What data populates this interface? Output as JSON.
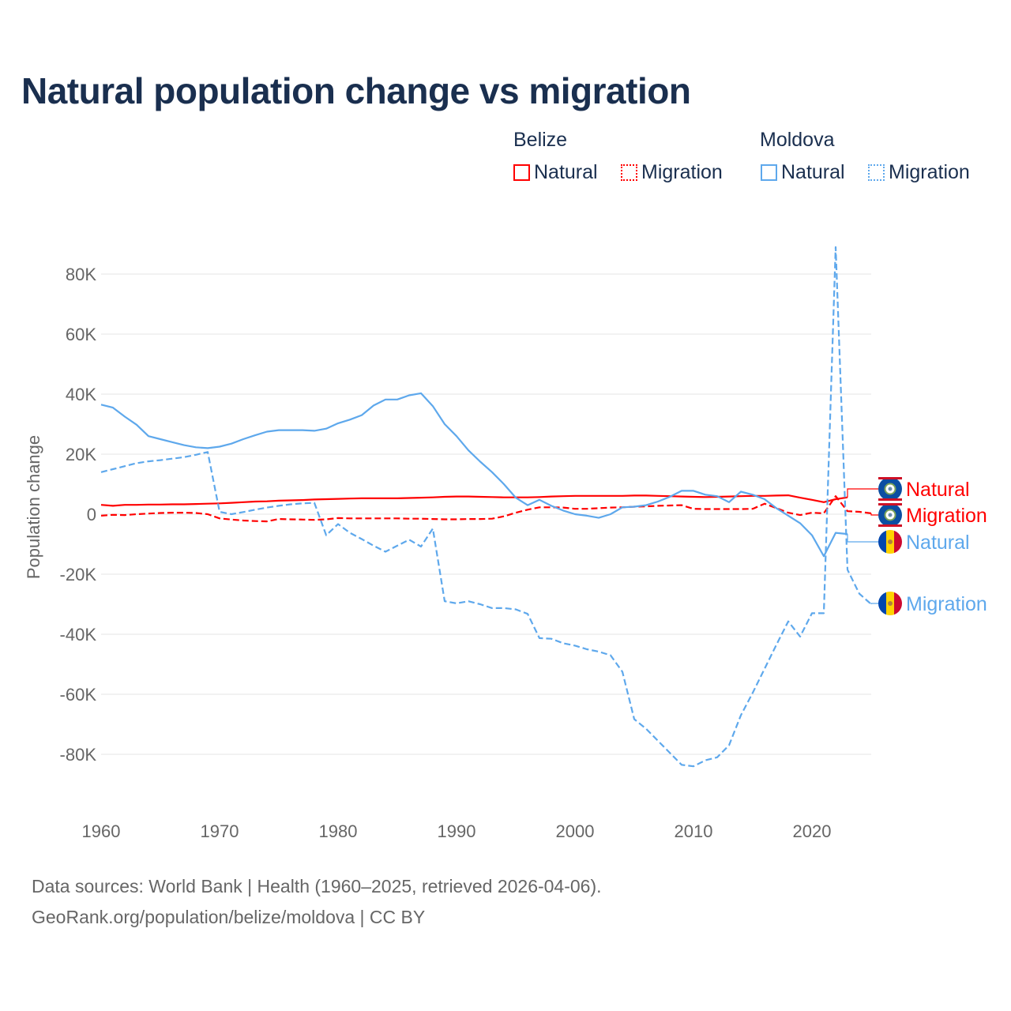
{
  "title": "Natural population change vs migration",
  "legend": {
    "groups": [
      {
        "name": "Belize",
        "items": [
          "Natural",
          "Migration"
        ],
        "color": "#ff0000"
      },
      {
        "name": "Moldova",
        "items": [
          "Natural",
          "Migration"
        ],
        "color": "#5ea8ec"
      }
    ]
  },
  "footer": {
    "line1": "Data sources: World Bank | Health (1960–2025, retrieved 2026-04-06).",
    "line2": "GeoRank.org/population/belize/moldova | CC BY"
  },
  "chart_data": {
    "type": "line",
    "title": "Natural population change vs migration",
    "xlabel": "",
    "ylabel": "Population change",
    "xlim": [
      1960,
      2025
    ],
    "ylim": [
      -100000,
      90000
    ],
    "xticks": [
      1960,
      1970,
      1980,
      1990,
      2000,
      2010,
      2020
    ],
    "yticks": [
      -80000,
      -60000,
      -40000,
      -20000,
      0,
      20000,
      40000,
      60000,
      80000
    ],
    "ytick_labels": [
      "-80K",
      "-60K",
      "-40K",
      "-20K",
      "0",
      "20K",
      "40K",
      "60K",
      "80K"
    ],
    "grid": true,
    "series": [
      {
        "name": "Belize Natural",
        "label": "Natural",
        "country": "Belize",
        "color": "#ff0000",
        "dashed": false,
        "start": 1960,
        "values": [
          3.1,
          2.8,
          3.1,
          3.1,
          3.2,
          3.2,
          3.3,
          3.3,
          3.4,
          3.5,
          3.6,
          3.8,
          4.0,
          4.2,
          4.3,
          4.5,
          4.6,
          4.7,
          4.9,
          5.0,
          5.1,
          5.2,
          5.3,
          5.3,
          5.3,
          5.3,
          5.4,
          5.5,
          5.6,
          5.8,
          5.9,
          5.9,
          5.8,
          5.7,
          5.6,
          5.6,
          5.6,
          5.7,
          5.9,
          6.0,
          6.1,
          6.1,
          6.1,
          6.1,
          6.1,
          6.2,
          6.2,
          6.1,
          6.0,
          5.9,
          5.8,
          5.7,
          5.8,
          5.9,
          6.0,
          6.1,
          6.1,
          6.2,
          6.3,
          5.5,
          4.8,
          4.0,
          5.0,
          5.6
        ]
      },
      {
        "name": "Belize Migration",
        "label": "Migration",
        "country": "Belize",
        "color": "#ff0000",
        "dashed": true,
        "start": 1960,
        "values": [
          -0.5,
          -0.2,
          -0.3,
          0.0,
          0.2,
          0.4,
          0.5,
          0.5,
          0.4,
          0.0,
          -1.4,
          -1.8,
          -2.1,
          -2.3,
          -2.4,
          -1.6,
          -1.7,
          -1.8,
          -1.9,
          -1.7,
          -1.3,
          -1.4,
          -1.4,
          -1.4,
          -1.4,
          -1.4,
          -1.5,
          -1.5,
          -1.6,
          -1.7,
          -1.7,
          -1.6,
          -1.6,
          -1.5,
          -0.7,
          0.5,
          1.5,
          2.3,
          2.3,
          2.2,
          1.8,
          1.8,
          2.0,
          2.2,
          2.3,
          2.5,
          2.6,
          2.8,
          2.9,
          3.0,
          1.8,
          1.7,
          1.7,
          1.7,
          1.7,
          1.8,
          3.5,
          2.0,
          0.5,
          -0.3,
          0.5,
          0.3,
          6.0,
          1.0,
          0.8,
          0.3
        ]
      },
      {
        "name": "Moldova Natural",
        "label": "Natural",
        "country": "Moldova",
        "color": "#5ea8ec",
        "dashed": false,
        "start": 1960,
        "values": [
          36.5,
          35.5,
          32.5,
          29.8,
          26,
          25,
          24,
          23,
          22.3,
          22,
          22.5,
          23.5,
          25,
          26.3,
          27.5,
          28,
          28,
          28,
          27.8,
          28.5,
          30.3,
          31.5,
          33,
          36.2,
          38.2,
          38.2,
          39.6,
          40.3,
          36,
          30,
          26,
          21.3,
          17.5,
          14,
          10,
          5.5,
          3,
          4.8,
          2.8,
          1.2,
          0,
          -0.5,
          -1.2,
          0,
          2.3,
          2.5,
          3,
          4.2,
          5.8,
          7.8,
          7.8,
          6.5,
          6,
          4,
          7.5,
          6.5,
          5,
          2,
          -0.5,
          -3,
          -7,
          -14,
          -6.2,
          -6.6
        ]
      },
      {
        "name": "Moldova Migration",
        "label": "Migration",
        "country": "Moldova",
        "color": "#5ea8ec",
        "dashed": true,
        "start": 1960,
        "values": [
          14,
          15,
          16,
          17,
          17.6,
          18,
          18.5,
          19,
          19.8,
          20.7,
          0.8,
          0,
          0.7,
          1.5,
          2.2,
          2.8,
          3.3,
          3.6,
          3.8,
          -7,
          -3.3,
          -6.2,
          -8.3,
          -10.5,
          -12.5,
          -10.5,
          -8.5,
          -10.8,
          -4.8,
          -29,
          -29.7,
          -29,
          -30,
          -31.3,
          -31.3,
          -31.7,
          -33.2,
          -41.3,
          -41.5,
          -43,
          -43.8,
          -45,
          -45.8,
          -47,
          -52.5,
          -68.3,
          -71.5,
          -75.5,
          -79.5,
          -83.5,
          -84,
          -82,
          -81,
          -77,
          -67,
          -59.5,
          -51.5,
          -43.5,
          -35.7,
          -40.8,
          -33,
          -33,
          89,
          -18.5,
          -26.5,
          -30
        ]
      }
    ],
    "values_unit": "thousands"
  }
}
